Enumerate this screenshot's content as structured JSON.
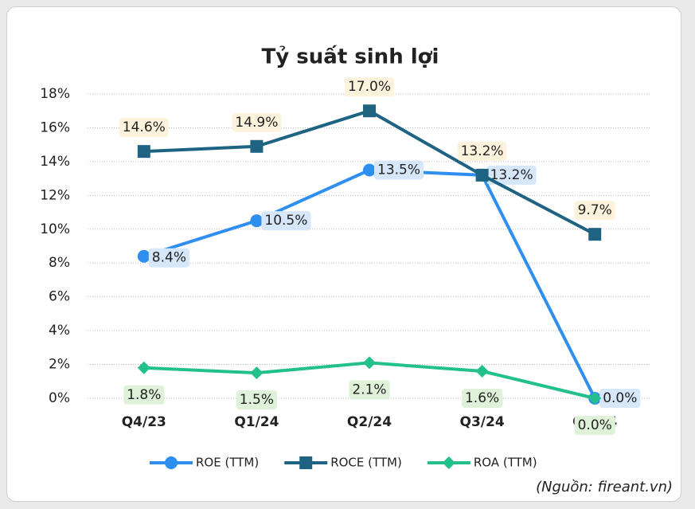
{
  "chart_data": {
    "type": "line",
    "title": "Tỷ suất sinh lợi",
    "categories": [
      "Q4/23",
      "Q1/24",
      "Q2/24",
      "Q3/24",
      "Q4/24"
    ],
    "series": [
      {
        "name": "ROE (TTM)",
        "color": "#2f8ff0",
        "marker": "circle",
        "values": [
          8.4,
          10.5,
          13.5,
          13.2,
          0.0
        ],
        "value_labels": [
          "8.4%",
          "10.5%",
          "13.5%",
          "13.2%",
          "0.0%"
        ]
      },
      {
        "name": "ROCE (TTM)",
        "color": "#1e6482",
        "marker": "square",
        "values": [
          14.6,
          14.9,
          17.0,
          13.2,
          9.7
        ],
        "value_labels": [
          "14.6%",
          "14.9%",
          "17.0%",
          "13.2%",
          "9.7%"
        ]
      },
      {
        "name": "ROA (TTM)",
        "color": "#22c08a",
        "marker": "diamond",
        "values": [
          1.8,
          1.5,
          2.1,
          1.6,
          0.0
        ],
        "value_labels": [
          "1.8%",
          "1.5%",
          "2.1%",
          "1.6%",
          "0.0%"
        ]
      }
    ],
    "ylim": [
      0,
      18
    ],
    "yticks": [
      {
        "value": 0,
        "label": "0%"
      },
      {
        "value": 2,
        "label": "2%"
      },
      {
        "value": 4,
        "label": "4%"
      },
      {
        "value": 6,
        "label": "6%"
      },
      {
        "value": 8,
        "label": "8%"
      },
      {
        "value": 10,
        "label": "10%"
      },
      {
        "value": 12,
        "label": "12%"
      },
      {
        "value": 14,
        "label": "14%"
      },
      {
        "value": 16,
        "label": "16%"
      },
      {
        "value": 18,
        "label": "18%"
      }
    ],
    "grid": true,
    "legend": "bottom",
    "source": "(Nguồn: fireant.vn)"
  }
}
